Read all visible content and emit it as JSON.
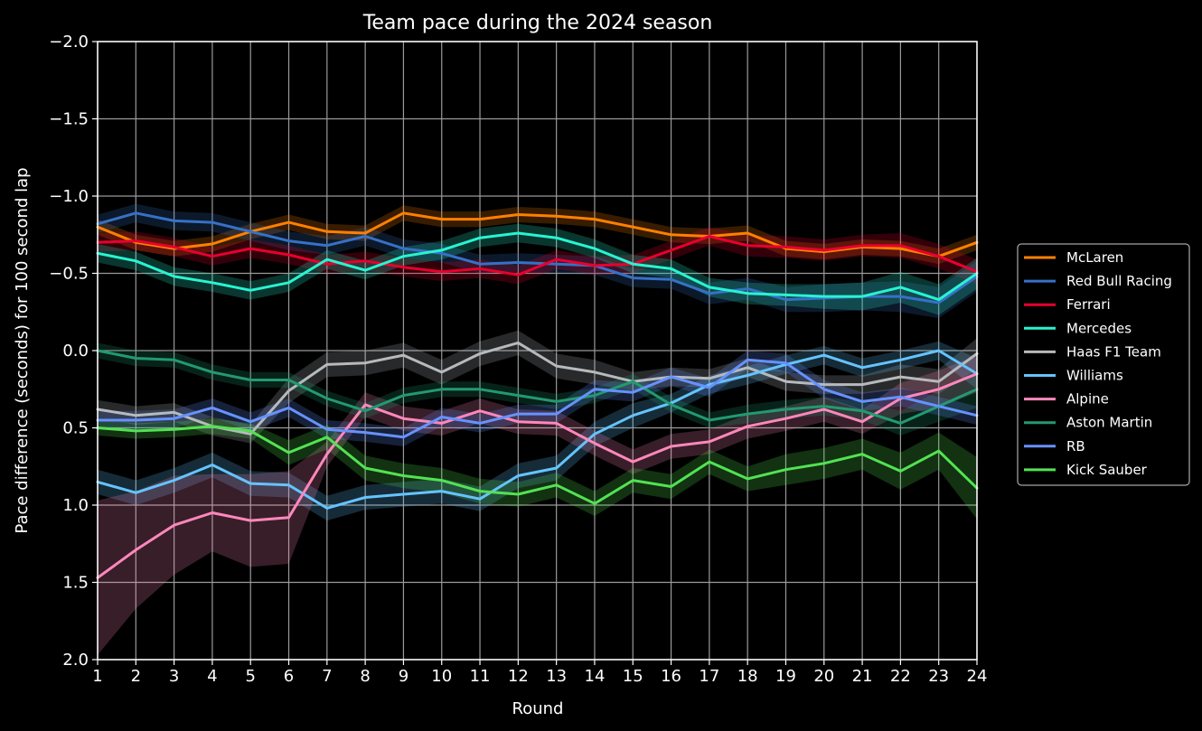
{
  "chart_data": {
    "type": "line",
    "title": "Team pace during the 2024 season",
    "xlabel": "Round",
    "ylabel": "Pace difference (seconds) for 100 second lap",
    "x": [
      1,
      2,
      3,
      4,
      5,
      6,
      7,
      8,
      9,
      10,
      11,
      12,
      13,
      14,
      15,
      16,
      17,
      18,
      19,
      20,
      21,
      22,
      23,
      24
    ],
    "xlim": [
      1,
      24
    ],
    "ylim": [
      2.0,
      -2.0
    ],
    "y_inverted": true,
    "yticks": [
      -2.0,
      -1.5,
      -1.0,
      -0.5,
      0.0,
      0.5,
      1.0,
      1.5,
      2.0
    ],
    "ytick_labels": [
      "−2.0",
      "−1.5",
      "−1.0",
      "−0.5",
      "0.0",
      "0.5",
      "1.0",
      "1.5",
      "2.0"
    ],
    "grid": true,
    "legend_position": "center-right, outside plot",
    "shaded_band": "uncertainty interval around each series",
    "background": "#000000",
    "series": [
      {
        "name": "McLaren",
        "color": "#ff8000",
        "values": [
          -0.8,
          -0.7,
          -0.66,
          -0.69,
          -0.77,
          -0.83,
          -0.77,
          -0.76,
          -0.89,
          -0.85,
          -0.85,
          -0.88,
          -0.87,
          -0.85,
          -0.8,
          -0.75,
          -0.74,
          -0.76,
          -0.66,
          -0.64,
          -0.67,
          -0.66,
          -0.61,
          -0.7
        ],
        "err": [
          0.05,
          0.05,
          0.05,
          0.05,
          0.05,
          0.05,
          0.05,
          0.05,
          0.05,
          0.05,
          0.05,
          0.05,
          0.05,
          0.05,
          0.05,
          0.05,
          0.05,
          0.05,
          0.05,
          0.05,
          0.05,
          0.05,
          0.05,
          0.05
        ]
      },
      {
        "name": "Red Bull Racing",
        "color": "#3671c6",
        "values": [
          -0.82,
          -0.89,
          -0.84,
          -0.83,
          -0.77,
          -0.71,
          -0.68,
          -0.74,
          -0.66,
          -0.63,
          -0.56,
          -0.57,
          -0.56,
          -0.55,
          -0.47,
          -0.46,
          -0.37,
          -0.4,
          -0.33,
          -0.34,
          -0.35,
          -0.35,
          -0.31,
          -0.48
        ],
        "err": [
          0.06,
          0.06,
          0.06,
          0.06,
          0.06,
          0.06,
          0.06,
          0.06,
          0.06,
          0.06,
          0.06,
          0.06,
          0.06,
          0.06,
          0.06,
          0.06,
          0.07,
          0.07,
          0.08,
          0.09,
          0.09,
          0.1,
          0.1,
          0.1
        ]
      },
      {
        "name": "Ferrari",
        "color": "#e8002d",
        "values": [
          -0.7,
          -0.71,
          -0.67,
          -0.61,
          -0.66,
          -0.62,
          -0.56,
          -0.58,
          -0.54,
          -0.51,
          -0.53,
          -0.49,
          -0.59,
          -0.55,
          -0.56,
          -0.65,
          -0.74,
          -0.68,
          -0.67,
          -0.65,
          -0.68,
          -0.68,
          -0.61,
          -0.51
        ],
        "err": [
          0.06,
          0.06,
          0.06,
          0.06,
          0.06,
          0.06,
          0.06,
          0.06,
          0.06,
          0.06,
          0.06,
          0.06,
          0.06,
          0.06,
          0.06,
          0.06,
          0.06,
          0.07,
          0.07,
          0.07,
          0.07,
          0.08,
          0.08,
          0.08
        ]
      },
      {
        "name": "Mercedes",
        "color": "#27f4d2",
        "values": [
          -0.63,
          -0.58,
          -0.48,
          -0.44,
          -0.39,
          -0.44,
          -0.59,
          -0.52,
          -0.61,
          -0.65,
          -0.73,
          -0.76,
          -0.73,
          -0.66,
          -0.56,
          -0.53,
          -0.41,
          -0.37,
          -0.36,
          -0.35,
          -0.35,
          -0.41,
          -0.33,
          -0.5
        ],
        "err": [
          0.06,
          0.06,
          0.06,
          0.06,
          0.06,
          0.06,
          0.06,
          0.06,
          0.06,
          0.06,
          0.06,
          0.06,
          0.06,
          0.06,
          0.06,
          0.06,
          0.06,
          0.07,
          0.07,
          0.08,
          0.09,
          0.1,
          0.1,
          0.1
        ]
      },
      {
        "name": "Haas F1 Team",
        "color": "#b6babd",
        "values": [
          0.38,
          0.42,
          0.4,
          0.49,
          0.54,
          0.26,
          0.09,
          0.08,
          0.03,
          0.14,
          0.02,
          -0.05,
          0.1,
          0.14,
          0.2,
          0.17,
          0.18,
          0.11,
          0.2,
          0.22,
          0.22,
          0.17,
          0.2,
          0.02
        ],
        "err": [
          0.06,
          0.06,
          0.06,
          0.06,
          0.06,
          0.08,
          0.08,
          0.08,
          0.08,
          0.08,
          0.08,
          0.08,
          0.08,
          0.08,
          0.06,
          0.06,
          0.06,
          0.06,
          0.06,
          0.06,
          0.06,
          0.08,
          0.08,
          0.1
        ]
      },
      {
        "name": "Williams",
        "color": "#64c4ff",
        "values": [
          0.85,
          0.92,
          0.84,
          0.74,
          0.86,
          0.87,
          1.02,
          0.95,
          0.93,
          0.91,
          0.96,
          0.81,
          0.76,
          0.54,
          0.42,
          0.34,
          0.22,
          0.16,
          0.09,
          0.03,
          0.11,
          0.06,
          0.0,
          0.15
        ],
        "err": [
          0.08,
          0.08,
          0.08,
          0.08,
          0.08,
          0.08,
          0.08,
          0.08,
          0.08,
          0.08,
          0.08,
          0.08,
          0.08,
          0.08,
          0.08,
          0.06,
          0.06,
          0.06,
          0.06,
          0.06,
          0.06,
          0.06,
          0.06,
          0.1
        ]
      },
      {
        "name": "Alpine",
        "color": "#ff87bc",
        "values": [
          1.47,
          1.29,
          1.13,
          1.05,
          1.1,
          1.08,
          0.67,
          0.35,
          0.44,
          0.47,
          0.39,
          0.46,
          0.47,
          0.6,
          0.72,
          0.62,
          0.59,
          0.49,
          0.44,
          0.38,
          0.46,
          0.31,
          0.25,
          0.15
        ],
        "err": [
          0.5,
          0.38,
          0.32,
          0.25,
          0.3,
          0.3,
          0.08,
          0.08,
          0.08,
          0.08,
          0.08,
          0.08,
          0.08,
          0.08,
          0.08,
          0.08,
          0.08,
          0.08,
          0.08,
          0.08,
          0.08,
          0.1,
          0.12,
          0.12
        ]
      },
      {
        "name": "Aston Martin",
        "color": "#229971",
        "values": [
          0.0,
          0.05,
          0.06,
          0.14,
          0.19,
          0.19,
          0.31,
          0.39,
          0.29,
          0.25,
          0.25,
          0.29,
          0.33,
          0.29,
          0.2,
          0.35,
          0.45,
          0.41,
          0.38,
          0.36,
          0.39,
          0.47,
          0.36,
          0.25
        ],
        "err": [
          0.05,
          0.05,
          0.05,
          0.05,
          0.05,
          0.05,
          0.05,
          0.05,
          0.05,
          0.05,
          0.05,
          0.05,
          0.05,
          0.05,
          0.05,
          0.05,
          0.05,
          0.06,
          0.06,
          0.06,
          0.06,
          0.08,
          0.1,
          0.12
        ]
      },
      {
        "name": "RB",
        "color": "#6692ff",
        "values": [
          0.45,
          0.45,
          0.44,
          0.37,
          0.46,
          0.37,
          0.51,
          0.53,
          0.56,
          0.43,
          0.47,
          0.41,
          0.41,
          0.25,
          0.27,
          0.17,
          0.24,
          0.06,
          0.08,
          0.25,
          0.33,
          0.3,
          0.36,
          0.42
        ],
        "err": [
          0.06,
          0.06,
          0.06,
          0.06,
          0.06,
          0.06,
          0.06,
          0.06,
          0.06,
          0.06,
          0.06,
          0.06,
          0.06,
          0.06,
          0.06,
          0.06,
          0.06,
          0.06,
          0.06,
          0.06,
          0.06,
          0.06,
          0.06,
          0.06
        ]
      },
      {
        "name": "Kick Sauber",
        "color": "#52e252",
        "values": [
          0.5,
          0.52,
          0.51,
          0.49,
          0.52,
          0.66,
          0.56,
          0.76,
          0.81,
          0.84,
          0.91,
          0.93,
          0.87,
          0.99,
          0.84,
          0.88,
          0.72,
          0.83,
          0.77,
          0.73,
          0.67,
          0.78,
          0.65,
          0.89
        ],
        "err": [
          0.05,
          0.05,
          0.05,
          0.05,
          0.05,
          0.08,
          0.08,
          0.08,
          0.08,
          0.08,
          0.08,
          0.08,
          0.08,
          0.08,
          0.08,
          0.08,
          0.08,
          0.08,
          0.1,
          0.1,
          0.1,
          0.12,
          0.12,
          0.2
        ]
      }
    ]
  }
}
